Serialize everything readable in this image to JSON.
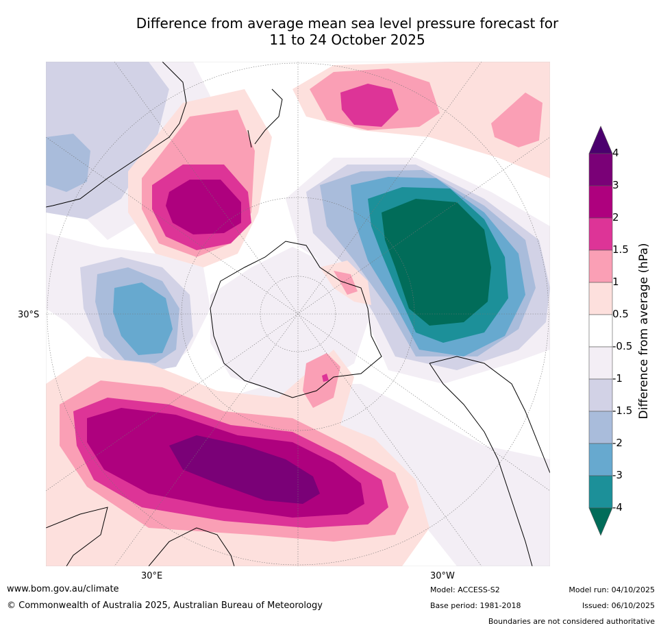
{
  "title_line1": "Difference from average mean sea level pressure forecast for",
  "title_line2": "11 to 24 October 2025",
  "axis_labels": {
    "lat": "30°S",
    "lon_east": "30°E",
    "lon_west": "30°W"
  },
  "colorbar": {
    "title": "Difference from average (hPa)",
    "ticks": [
      "4",
      "3",
      "2",
      "1.5",
      "1",
      "0.5",
      "-0.5",
      "-1",
      "-1.5",
      "-2",
      "-3",
      "-4"
    ],
    "colors": {
      "above4": "#4b006e",
      "c3_4": "#7a0177",
      "c2_3": "#ae017e",
      "c15_2": "#dd3497",
      "c1_15": "#fa9fb5",
      "c05_1": "#fde0dd",
      "neutral": "#ffffff",
      "m05_1": "#f3eef5",
      "m1_15": "#d2d2e6",
      "m15_2": "#a9bcdb",
      "m2_3": "#67a9cf",
      "m3_4": "#1c9099",
      "below4": "#016c59"
    }
  },
  "footer": {
    "website": "www.bom.gov.au/climate",
    "copyright": "© Commonwealth of Australia 2025, Australian Bureau of Meteorology",
    "model": "Model: ACCESS-S2",
    "base_period": "Base period: 1981-2018",
    "model_run": "Model run: 04/10/2025",
    "issued": "Issued: 06/10/2025",
    "disclaimer": "Boundaries are not considered authoritative"
  }
}
